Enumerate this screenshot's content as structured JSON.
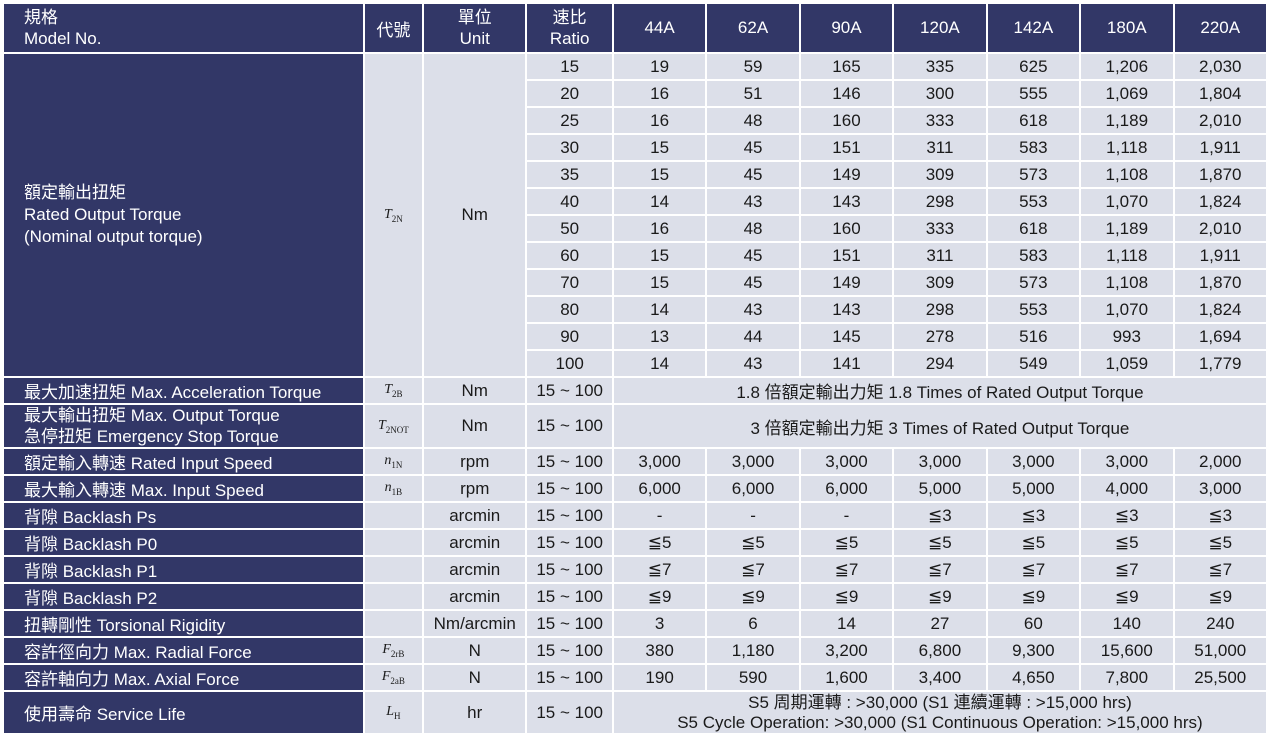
{
  "header": {
    "model_zh": "規格",
    "model_en": "Model No.",
    "code": "代號",
    "unit_zh": "單位",
    "unit_en": "Unit",
    "ratio_zh": "速比",
    "ratio_en": "Ratio",
    "models": [
      "44A",
      "62A",
      "90A",
      "120A",
      "142A",
      "180A",
      "220A"
    ]
  },
  "rated_torque": {
    "label_zh": "額定輸出扭矩",
    "label_en": "Rated Output Torque",
    "label_en2": "(Nominal output torque)",
    "symbol": "T",
    "symbol_sub": "2N",
    "unit": "Nm",
    "rows": [
      {
        "ratio": "15",
        "values": [
          "19",
          "59",
          "165",
          "335",
          "625",
          "1,206",
          "2,030"
        ]
      },
      {
        "ratio": "20",
        "values": [
          "16",
          "51",
          "146",
          "300",
          "555",
          "1,069",
          "1,804"
        ]
      },
      {
        "ratio": "25",
        "values": [
          "16",
          "48",
          "160",
          "333",
          "618",
          "1,189",
          "2,010"
        ]
      },
      {
        "ratio": "30",
        "values": [
          "15",
          "45",
          "151",
          "311",
          "583",
          "1,118",
          "1,911"
        ]
      },
      {
        "ratio": "35",
        "values": [
          "15",
          "45",
          "149",
          "309",
          "573",
          "1,108",
          "1,870"
        ]
      },
      {
        "ratio": "40",
        "values": [
          "14",
          "43",
          "143",
          "298",
          "553",
          "1,070",
          "1,824"
        ]
      },
      {
        "ratio": "50",
        "values": [
          "16",
          "48",
          "160",
          "333",
          "618",
          "1,189",
          "2,010"
        ]
      },
      {
        "ratio": "60",
        "values": [
          "15",
          "45",
          "151",
          "311",
          "583",
          "1,118",
          "1,911"
        ]
      },
      {
        "ratio": "70",
        "values": [
          "15",
          "45",
          "149",
          "309",
          "573",
          "1,108",
          "1,870"
        ]
      },
      {
        "ratio": "80",
        "values": [
          "14",
          "43",
          "143",
          "298",
          "553",
          "1,070",
          "1,824"
        ]
      },
      {
        "ratio": "90",
        "values": [
          "13",
          "44",
          "145",
          "278",
          "516",
          "993",
          "1,694"
        ]
      },
      {
        "ratio": "100",
        "values": [
          "14",
          "43",
          "141",
          "294",
          "549",
          "1,059",
          "1,779"
        ]
      }
    ]
  },
  "accel_torque": {
    "label": "最大加速扭矩 Max. Acceleration Torque",
    "symbol": "T",
    "symbol_sub": "2B",
    "unit": "Nm",
    "ratio": "15 ~ 100",
    "value": "1.8 倍額定輸出力矩  1.8 Times of Rated Output Torque"
  },
  "max_torque": {
    "label1": "最大輸出扭矩  Max. Output Torque",
    "label2": "急停扭矩  Emergency Stop Torque",
    "symbol": "T",
    "symbol_sub": "2NOT",
    "unit": "Nm",
    "ratio": "15 ~ 100",
    "value": "3 倍額定輸出力矩  3 Times of Rated Output Torque"
  },
  "rated_speed": {
    "label": "額定輸入轉速  Rated Input Speed",
    "symbol": "n",
    "symbol_sub": "1N",
    "unit": "rpm",
    "ratio": "15 ~ 100",
    "values": [
      "3,000",
      "3,000",
      "3,000",
      "3,000",
      "3,000",
      "3,000",
      "2,000"
    ]
  },
  "max_speed": {
    "label": "最大輸入轉速  Max. Input Speed",
    "symbol": "n",
    "symbol_sub": "1B",
    "unit": "rpm",
    "ratio": "15 ~ 100",
    "values": [
      "6,000",
      "6,000",
      "6,000",
      "5,000",
      "5,000",
      "4,000",
      "3,000"
    ]
  },
  "backlash_ps": {
    "label": "背隙  Backlash Ps",
    "unit": "arcmin",
    "ratio": "15 ~ 100",
    "values": [
      "-",
      "-",
      "-",
      "≦3",
      "≦3",
      "≦3",
      "≦3"
    ]
  },
  "backlash_p0": {
    "label": "背隙  Backlash P0",
    "unit": "arcmin",
    "ratio": "15 ~ 100",
    "values": [
      "≦5",
      "≦5",
      "≦5",
      "≦5",
      "≦5",
      "≦5",
      "≦5"
    ]
  },
  "backlash_p1": {
    "label": "背隙  Backlash P1",
    "unit": "arcmin",
    "ratio": "15 ~ 100",
    "values": [
      "≦7",
      "≦7",
      "≦7",
      "≦7",
      "≦7",
      "≦7",
      "≦7"
    ]
  },
  "backlash_p2": {
    "label": "背隙  Backlash P2",
    "unit": "arcmin",
    "ratio": "15 ~ 100",
    "values": [
      "≦9",
      "≦9",
      "≦9",
      "≦9",
      "≦9",
      "≦9",
      "≦9"
    ]
  },
  "torsional": {
    "label": "扭轉剛性  Torsional Rigidity",
    "unit": "Nm/arcmin",
    "ratio": "15 ~ 100",
    "values": [
      "3",
      "6",
      "14",
      "27",
      "60",
      "140",
      "240"
    ]
  },
  "radial": {
    "label": "容許徑向力  Max. Radial Force",
    "symbol": "F",
    "symbol_sub": "2rB",
    "unit": "N",
    "ratio": "15 ~ 100",
    "values": [
      "380",
      "1,180",
      "3,200",
      "6,800",
      "9,300",
      "15,600",
      "51,000"
    ]
  },
  "axial": {
    "label": "容許軸向力  Max. Axial Force",
    "symbol": "F",
    "symbol_sub": "2aB",
    "unit": "N",
    "ratio": "15 ~ 100",
    "values": [
      "190",
      "590",
      "1,600",
      "3,400",
      "4,650",
      "7,800",
      "25,500"
    ]
  },
  "life": {
    "label": "使用壽命  Service Life",
    "symbol": "L",
    "symbol_sub": "H",
    "unit": "hr",
    "ratio": "15 ~ 100",
    "value1": "S5 周期運轉 : >30,000 (S1 連續運轉 : >15,000 hrs)",
    "value2": "S5 Cycle Operation: >30,000 (S1 Continuous Operation: >15,000 hrs)"
  }
}
